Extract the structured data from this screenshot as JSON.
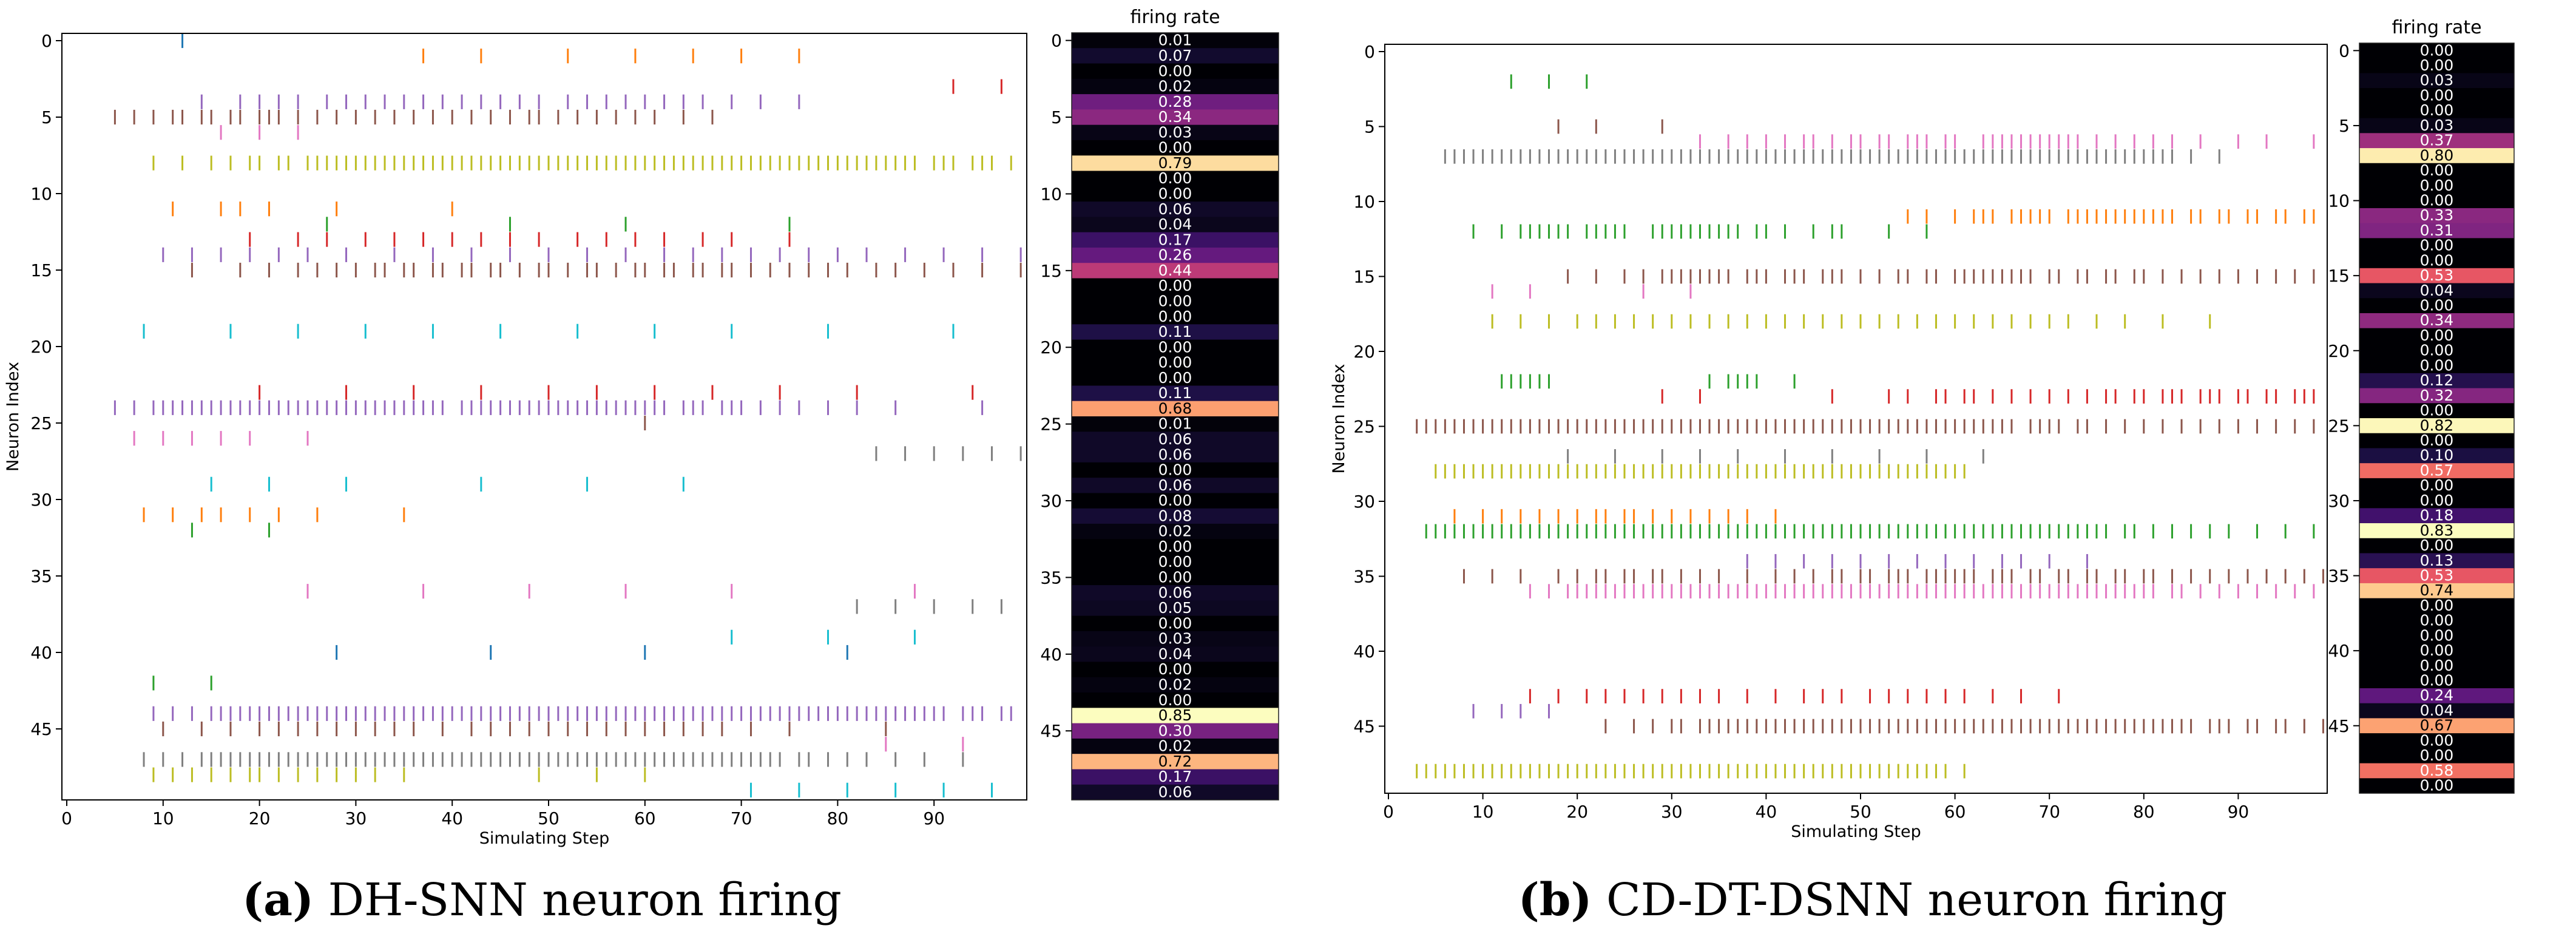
{
  "palette": [
    "#1f77b4",
    "#ff7f0e",
    "#2ca02c",
    "#d62728",
    "#9467bd",
    "#8c564b",
    "#e377c2",
    "#7f7f7f",
    "#bcbd22",
    "#17becf"
  ],
  "colormap": "magma",
  "captions": [
    {
      "letter": "(a)",
      "text": " DH-SNN neuron firing"
    },
    {
      "letter": "(b)",
      "text": " CD-DT-DSNN neuron firing"
    }
  ],
  "chart_data": [
    {
      "type": "scatter",
      "subtype": "spike-raster",
      "xlabel": "Simulating Step",
      "ylabel": "Neuron Index",
      "xlim": [
        0,
        99
      ],
      "ylim": [
        49,
        0
      ],
      "xticks": [
        0,
        10,
        20,
        30,
        40,
        50,
        60,
        70,
        80,
        90
      ],
      "yticks": [
        0,
        5,
        10,
        15,
        20,
        25,
        30,
        35,
        40,
        45
      ],
      "color_rule": "neuron index mod 10 in palette",
      "neurons": [
        {
          "index": 0,
          "spikes": [
            12
          ]
        },
        {
          "index": 1,
          "spikes": [
            37,
            43,
            52,
            59,
            65,
            70,
            76
          ]
        },
        {
          "index": 3,
          "spikes": [
            92,
            97
          ]
        },
        {
          "index": 4,
          "spikes": [
            14,
            18,
            20,
            22,
            24,
            27,
            29,
            31,
            33,
            35,
            37,
            39,
            41,
            43,
            45,
            47,
            49,
            52,
            54,
            56,
            58,
            60,
            62,
            64,
            66,
            69,
            72,
            76
          ]
        },
        {
          "index": 5,
          "spikes": [
            5,
            7,
            9,
            11,
            12,
            14,
            15,
            17,
            18,
            20,
            21,
            22,
            24,
            26,
            28,
            30,
            32,
            34,
            36,
            38,
            40,
            42,
            44,
            46,
            48,
            49,
            51,
            53,
            55,
            57,
            59,
            61,
            64,
            67
          ]
        },
        {
          "index": 6,
          "spikes": [
            16,
            20,
            24
          ]
        },
        {
          "index": 8,
          "spikes": [
            9,
            12,
            15,
            17,
            19,
            20,
            22,
            23,
            "25-88",
            90,
            91,
            92,
            94,
            95,
            96,
            98
          ]
        },
        {
          "index": 11,
          "spikes": [
            11,
            16,
            18,
            21,
            28,
            40
          ]
        },
        {
          "index": 12,
          "spikes": [
            27,
            46,
            58,
            75
          ]
        },
        {
          "index": 13,
          "spikes": [
            19,
            24,
            27,
            31,
            34,
            37,
            40,
            43,
            46,
            49,
            53,
            56,
            59,
            62,
            66,
            69,
            75
          ]
        },
        {
          "index": 14,
          "spikes": [
            10,
            13,
            16,
            19,
            22,
            25,
            29,
            34,
            38,
            42,
            46,
            50,
            54,
            58,
            62,
            65,
            68,
            71,
            74,
            77,
            80,
            83,
            87,
            91,
            95,
            99
          ]
        },
        {
          "index": 15,
          "spikes": [
            13,
            18,
            21,
            24,
            26,
            28,
            30,
            32,
            33,
            35,
            36,
            38,
            39,
            41,
            42,
            44,
            45,
            47,
            49,
            50,
            52,
            54,
            55,
            57,
            59,
            60,
            62,
            63,
            65,
            66,
            68,
            69,
            71,
            73,
            75,
            77,
            79,
            81,
            84,
            86,
            89,
            92,
            95,
            99
          ]
        },
        {
          "index": 19,
          "spikes": [
            8,
            17,
            24,
            31,
            38,
            45,
            53,
            61,
            69,
            79,
            92
          ]
        },
        {
          "index": 23,
          "spikes": [
            20,
            29,
            36,
            43,
            50,
            55,
            61,
            67,
            74,
            82,
            94
          ]
        },
        {
          "index": 24,
          "spikes": [
            5,
            7,
            9,
            "10-39",
            "41-62",
            64,
            65,
            66,
            68,
            69,
            70,
            72,
            74,
            76,
            79,
            82,
            86,
            95
          ]
        },
        {
          "index": 25,
          "spikes": [
            60
          ]
        },
        {
          "index": 26,
          "spikes": [
            7,
            10,
            13,
            16,
            19,
            25
          ]
        },
        {
          "index": 27,
          "spikes": [
            84,
            87,
            90,
            93,
            96,
            99
          ]
        },
        {
          "index": 29,
          "spikes": [
            15,
            21,
            29,
            43,
            54,
            64
          ]
        },
        {
          "index": 31,
          "spikes": [
            8,
            11,
            14,
            16,
            19,
            22,
            26,
            35
          ]
        },
        {
          "index": 32,
          "spikes": [
            13,
            21
          ]
        },
        {
          "index": 36,
          "spikes": [
            25,
            37,
            48,
            58,
            69,
            88
          ]
        },
        {
          "index": 37,
          "spikes": [
            82,
            86,
            90,
            94,
            97
          ]
        },
        {
          "index": 39,
          "spikes": [
            69,
            79,
            88
          ]
        },
        {
          "index": 40,
          "spikes": [
            28,
            44,
            60,
            81
          ]
        },
        {
          "index": 42,
          "spikes": [
            9,
            15
          ]
        },
        {
          "index": 44,
          "spikes": [
            9,
            11,
            13,
            "15-91",
            93,
            94,
            95,
            97,
            98
          ]
        },
        {
          "index": 45,
          "spikes": [
            10,
            14,
            17,
            20,
            22,
            24,
            26,
            28,
            30,
            32,
            34,
            36,
            39,
            42,
            44,
            46,
            48,
            50,
            52,
            54,
            56,
            58,
            60,
            62,
            64,
            66,
            68,
            71,
            75,
            85
          ]
        },
        {
          "index": 46,
          "spikes": [
            85,
            93
          ]
        },
        {
          "index": 47,
          "spikes": [
            8,
            10,
            12,
            "14-74",
            76,
            77,
            79,
            81,
            83,
            86,
            89,
            93
          ]
        },
        {
          "index": 48,
          "spikes": [
            9,
            11,
            13,
            15,
            17,
            19,
            20,
            22,
            24,
            26,
            28,
            30,
            32,
            35,
            49,
            55,
            60
          ]
        },
        {
          "index": 49,
          "spikes": [
            71,
            76,
            81,
            86,
            91,
            96
          ]
        }
      ]
    },
    {
      "type": "heatmap",
      "title": "firing rate",
      "yticks": [
        0,
        5,
        10,
        15,
        20,
        25,
        30,
        35,
        40,
        45
      ],
      "values": [
        0.01,
        0.07,
        0.0,
        0.02,
        0.28,
        0.34,
        0.03,
        0.0,
        0.79,
        0.0,
        0.0,
        0.06,
        0.04,
        0.17,
        0.26,
        0.44,
        0.0,
        0.0,
        0.0,
        0.11,
        0.0,
        0.0,
        0.0,
        0.11,
        0.68,
        0.01,
        0.06,
        0.06,
        0.0,
        0.06,
        0.0,
        0.08,
        0.02,
        0.0,
        0.0,
        0.0,
        0.06,
        0.05,
        0.0,
        0.03,
        0.04,
        0.0,
        0.02,
        0.0,
        0.85,
        0.3,
        0.02,
        0.72,
        0.17,
        0.06
      ]
    },
    {
      "type": "scatter",
      "subtype": "spike-raster",
      "xlabel": "Simulating Step",
      "ylabel": "Neuron Index",
      "xlim": [
        0,
        99
      ],
      "ylim": [
        49,
        0
      ],
      "xticks": [
        0,
        10,
        20,
        30,
        40,
        50,
        60,
        70,
        80,
        90
      ],
      "yticks": [
        0,
        5,
        10,
        15,
        20,
        25,
        30,
        35,
        40,
        45
      ],
      "color_rule": "neuron index mod 10 in palette",
      "neurons": [
        {
          "index": 2,
          "spikes": [
            13,
            17,
            21
          ]
        },
        {
          "index": 5,
          "spikes": [
            18,
            22,
            29
          ]
        },
        {
          "index": 6,
          "spikes": [
            33,
            36,
            38,
            40,
            42,
            44,
            45,
            47,
            49,
            50,
            52,
            53,
            55,
            56,
            57,
            59,
            60,
            63,
            64,
            65,
            66,
            67,
            68,
            69,
            70,
            71,
            72,
            73,
            75,
            77,
            79,
            81,
            83,
            86,
            90,
            93,
            98
          ]
        },
        {
          "index": 7,
          "spikes": [
            "6-83",
            85,
            88
          ]
        },
        {
          "index": 11,
          "spikes": [
            55,
            57,
            60,
            "62-64",
            "66-70",
            "72-83",
            85,
            86,
            88,
            89,
            91,
            92,
            94,
            95,
            97,
            98
          ]
        },
        {
          "index": 12,
          "spikes": [
            9,
            12,
            "14-19",
            "21-25",
            "28-37",
            39,
            40,
            42,
            45,
            47,
            48,
            53,
            57
          ]
        },
        {
          "index": 15,
          "spikes": [
            19,
            22,
            25,
            27,
            "29-36",
            "38-40",
            "42-44",
            "46-48",
            50,
            52,
            54,
            55,
            57,
            58,
            "60-68",
            70,
            71,
            73,
            74,
            76,
            77,
            79,
            80,
            82,
            84,
            86,
            88,
            90,
            92,
            94,
            96,
            98
          ]
        },
        {
          "index": 16,
          "spikes": [
            11,
            15,
            27,
            32
          ]
        },
        {
          "index": 18,
          "spikes": [
            11,
            14,
            17,
            20,
            22,
            24,
            26,
            28,
            30,
            32,
            34,
            36,
            38,
            40,
            42,
            44,
            46,
            48,
            50,
            52,
            54,
            56,
            58,
            60,
            62,
            64,
            66,
            68,
            70,
            72,
            75,
            78,
            82,
            87
          ]
        },
        {
          "index": 22,
          "spikes": [
            "12-17",
            34,
            36,
            37,
            38,
            39,
            43
          ]
        },
        {
          "index": 23,
          "spikes": [
            29,
            33,
            47,
            53,
            55,
            58,
            59,
            61,
            62,
            64,
            66,
            68,
            70,
            72,
            74,
            76,
            77,
            79,
            80,
            82,
            83,
            84,
            86,
            87,
            88,
            90,
            91,
            93,
            94,
            96,
            97,
            98
          ]
        },
        {
          "index": 25,
          "spikes": [
            "3-66",
            68,
            69,
            70,
            71,
            73,
            74,
            76,
            78,
            80,
            82,
            84,
            86,
            88,
            90,
            92,
            94,
            96,
            98
          ]
        },
        {
          "index": 27,
          "spikes": [
            19,
            24,
            29,
            33,
            37,
            42,
            47,
            52,
            57,
            63
          ]
        },
        {
          "index": 28,
          "spikes": [
            "5-61"
          ]
        },
        {
          "index": 31,
          "spikes": [
            7,
            10,
            12,
            14,
            16,
            18,
            20,
            22,
            23,
            25,
            26,
            28,
            30,
            32,
            34,
            36,
            38,
            41
          ]
        },
        {
          "index": 32,
          "spikes": [
            "4-76",
            78,
            79,
            81,
            83,
            85,
            87,
            89,
            92,
            95,
            98
          ]
        },
        {
          "index": 34,
          "spikes": [
            38,
            41,
            44,
            47,
            50,
            53,
            56,
            59,
            62,
            65,
            67,
            70,
            74
          ]
        },
        {
          "index": 35,
          "spikes": [
            8,
            11,
            14,
            18,
            20,
            22,
            23,
            25,
            26,
            28,
            29,
            31,
            33,
            35,
            38,
            41,
            43,
            45,
            47,
            48,
            50,
            51,
            53,
            54,
            55,
            "57-62",
            64,
            65,
            66,
            68,
            69,
            71,
            72,
            74,
            75,
            77,
            78,
            80,
            81,
            83,
            85,
            87,
            89,
            91,
            93,
            95,
            97,
            99
          ]
        },
        {
          "index": 36,
          "spikes": [
            15,
            17,
            "19-81",
            83,
            84,
            86,
            88,
            90,
            92,
            94,
            96,
            98
          ]
        },
        {
          "index": 43,
          "spikes": [
            15,
            18,
            21,
            23,
            25,
            27,
            29,
            31,
            33,
            35,
            38,
            41,
            44,
            46,
            48,
            51,
            53,
            55,
            57,
            59,
            61,
            64,
            67,
            71
          ]
        },
        {
          "index": 44,
          "spikes": [
            9,
            12,
            14,
            17
          ]
        },
        {
          "index": 45,
          "spikes": [
            23,
            26,
            28,
            30,
            31,
            "33-85",
            87,
            88,
            89,
            91,
            92,
            94,
            95,
            97,
            99
          ]
        },
        {
          "index": 48,
          "spikes": [
            "3-59",
            61
          ]
        }
      ]
    },
    {
      "type": "heatmap",
      "title": "firing rate",
      "yticks": [
        0,
        5,
        10,
        15,
        20,
        25,
        30,
        35,
        40,
        45
      ],
      "values": [
        0.0,
        0.0,
        0.03,
        0.0,
        0.0,
        0.03,
        0.37,
        0.8,
        0.0,
        0.0,
        0.0,
        0.33,
        0.31,
        0.0,
        0.0,
        0.53,
        0.04,
        0.0,
        0.34,
        0.0,
        0.0,
        0.0,
        0.12,
        0.32,
        0.0,
        0.82,
        0.0,
        0.1,
        0.57,
        0.0,
        0.0,
        0.18,
        0.83,
        0.0,
        0.13,
        0.53,
        0.74,
        0.0,
        0.0,
        0.0,
        0.0,
        0.0,
        0.0,
        0.24,
        0.04,
        0.67,
        0.0,
        0.0,
        0.58,
        0.0
      ]
    }
  ]
}
